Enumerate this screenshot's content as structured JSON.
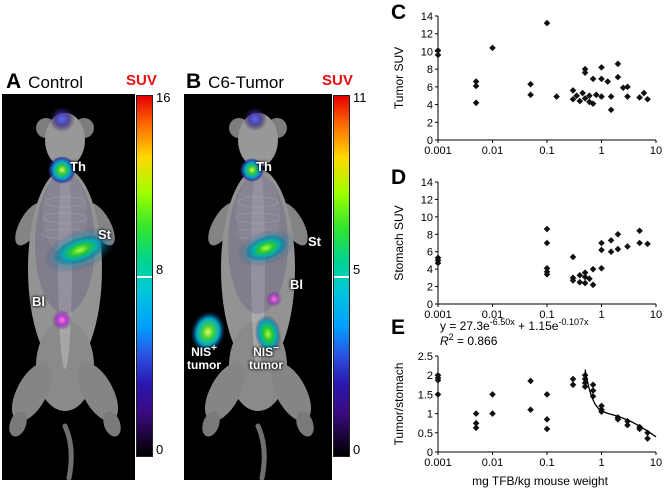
{
  "colors": {
    "suv_label": "#e81010",
    "marker": "#111111",
    "background": "#ffffff",
    "image_background": "#000000"
  },
  "panelA": {
    "letter": "A",
    "title": "Control",
    "suv": "SUV",
    "cbar_max": "16",
    "cbar_mid": "8",
    "cbar_min": "0",
    "labels": {
      "th": "Th",
      "st": "St",
      "bl": "Bl"
    }
  },
  "panelB": {
    "letter": "B",
    "title": "C6-Tumor",
    "suv": "SUV",
    "cbar_max": "11",
    "cbar_mid": "5",
    "cbar_min": "0",
    "labels": {
      "th": "Th",
      "st": "St",
      "bl": "Bl",
      "nis": "NIS",
      "pos": "+",
      "neg": "−",
      "tumor": "tumor"
    }
  },
  "panelC": {
    "letter": "C"
  },
  "panelD": {
    "letter": "D"
  },
  "panelE": {
    "letter": "E",
    "equation": {
      "p1": "y = 27.3e",
      "s1": "-6.50x",
      "p2": " + 1.15e",
      "s2": "-0.107x"
    },
    "r2": {
      "sym": "R",
      "sup": "2",
      "val": " = 0.866"
    }
  },
  "chart_data": [
    {
      "id": "C",
      "type": "scatter",
      "ylabel": "Tumor SUV",
      "xscale": "log",
      "xlim": [
        0.001,
        10
      ],
      "ylim": [
        0,
        14
      ],
      "xticks": [
        0.001,
        0.01,
        0.1,
        1,
        10
      ],
      "xtick_labels": [
        "0.001",
        "0.01",
        "0.1",
        "1",
        "10"
      ],
      "yticks": [
        0,
        2,
        4,
        6,
        8,
        10,
        12,
        14
      ],
      "ytick_labels": [
        "0",
        "2",
        "4",
        "6",
        "8",
        "10",
        "12",
        "14"
      ],
      "points": [
        [
          0.001,
          10.1
        ],
        [
          0.001,
          9.6
        ],
        [
          0.005,
          6.6
        ],
        [
          0.005,
          6.1
        ],
        [
          0.005,
          4.2
        ],
        [
          0.01,
          10.4
        ],
        [
          0.05,
          6.3
        ],
        [
          0.05,
          5.1
        ],
        [
          0.1,
          13.2
        ],
        [
          0.15,
          4.9
        ],
        [
          0.3,
          5.6
        ],
        [
          0.3,
          4.6
        ],
        [
          0.35,
          5.0
        ],
        [
          0.4,
          4.4
        ],
        [
          0.45,
          5.3
        ],
        [
          0.5,
          8.0
        ],
        [
          0.5,
          7.6
        ],
        [
          0.5,
          4.7
        ],
        [
          0.6,
          5.0
        ],
        [
          0.6,
          4.3
        ],
        [
          0.7,
          6.9
        ],
        [
          0.7,
          4.1
        ],
        [
          0.8,
          5.1
        ],
        [
          1.0,
          8.2
        ],
        [
          1.0,
          6.9
        ],
        [
          1.0,
          4.9
        ],
        [
          1.3,
          6.6
        ],
        [
          1.5,
          4.9
        ],
        [
          1.5,
          3.4
        ],
        [
          2.0,
          8.6
        ],
        [
          2.0,
          7.1
        ],
        [
          2.5,
          5.9
        ],
        [
          3.0,
          6.0
        ],
        [
          3.0,
          4.9
        ],
        [
          5.0,
          4.8
        ],
        [
          6.0,
          5.3
        ],
        [
          7.0,
          4.6
        ]
      ]
    },
    {
      "id": "D",
      "type": "scatter",
      "ylabel": "Stomach SUV",
      "xscale": "log",
      "xlim": [
        0.001,
        10
      ],
      "ylim": [
        0,
        14
      ],
      "xticks": [
        0.001,
        0.01,
        0.1,
        1,
        10
      ],
      "xtick_labels": [
        "0.001",
        "0.01",
        "0.1",
        "1",
        "10"
      ],
      "yticks": [
        0,
        2,
        4,
        6,
        8,
        10,
        12,
        14
      ],
      "ytick_labels": [
        "0",
        "2",
        "4",
        "6",
        "8",
        "10",
        "12",
        "14"
      ],
      "points": [
        [
          0.001,
          5.3
        ],
        [
          0.001,
          5.0
        ],
        [
          0.001,
          4.7
        ],
        [
          0.1,
          8.6
        ],
        [
          0.1,
          7.0
        ],
        [
          0.1,
          4.1
        ],
        [
          0.1,
          3.7
        ],
        [
          0.1,
          3.4
        ],
        [
          0.3,
          5.4
        ],
        [
          0.3,
          3.0
        ],
        [
          0.3,
          2.7
        ],
        [
          0.4,
          3.3
        ],
        [
          0.4,
          2.5
        ],
        [
          0.5,
          3.6
        ],
        [
          0.5,
          3.1
        ],
        [
          0.5,
          2.4
        ],
        [
          0.6,
          2.9
        ],
        [
          0.7,
          4.0
        ],
        [
          0.7,
          2.2
        ],
        [
          1.0,
          7.0
        ],
        [
          1.0,
          6.2
        ],
        [
          1.0,
          4.1
        ],
        [
          1.5,
          7.3
        ],
        [
          1.5,
          6.0
        ],
        [
          2.0,
          8.0
        ],
        [
          2.0,
          6.3
        ],
        [
          3.0,
          6.6
        ],
        [
          5.0,
          8.4
        ],
        [
          5.0,
          7.0
        ],
        [
          7.0,
          6.9
        ]
      ]
    },
    {
      "id": "E",
      "type": "scatter",
      "ylabel": "Tumor/stomach",
      "xlabel": "mg TFB/kg mouse weight",
      "xscale": "log",
      "xlim": [
        0.001,
        10
      ],
      "ylim": [
        0,
        2.5
      ],
      "xticks": [
        0.001,
        0.01,
        0.1,
        1,
        10
      ],
      "xtick_labels": [
        "0.001",
        "0.01",
        "0.1",
        "1",
        "10"
      ],
      "yticks": [
        0,
        0.5,
        1,
        1.5,
        2,
        2.5
      ],
      "ytick_labels": [
        "0",
        "0.5",
        "1",
        "1.5",
        "2",
        "2.5"
      ],
      "fit": {
        "a1": 27.3,
        "b1": -6.5,
        "a2": 1.15,
        "b2": -0.107,
        "x_start": 0.5,
        "x_end": 10
      },
      "fit_equation": "y = 27.3e^(-6.50x) + 1.15e^(-0.107x)",
      "r_squared": 0.866,
      "points": [
        [
          0.001,
          2.0
        ],
        [
          0.001,
          1.93
        ],
        [
          0.001,
          1.87
        ],
        [
          0.001,
          1.5
        ],
        [
          0.005,
          1.0
        ],
        [
          0.005,
          0.75
        ],
        [
          0.005,
          0.63
        ],
        [
          0.01,
          1.5
        ],
        [
          0.01,
          1.0
        ],
        [
          0.05,
          1.85
        ],
        [
          0.05,
          1.1
        ],
        [
          0.1,
          1.5
        ],
        [
          0.1,
          0.85
        ],
        [
          0.1,
          0.6
        ],
        [
          0.3,
          1.9
        ],
        [
          0.3,
          1.75
        ],
        [
          0.5,
          2.0
        ],
        [
          0.5,
          1.9
        ],
        [
          0.5,
          1.8
        ],
        [
          0.5,
          1.7
        ],
        [
          0.7,
          1.75
        ],
        [
          0.7,
          1.6
        ],
        [
          0.7,
          1.45
        ],
        [
          1.0,
          1.2
        ],
        [
          1.0,
          1.1
        ],
        [
          1.0,
          1.05
        ],
        [
          2.0,
          0.9
        ],
        [
          2.0,
          0.85
        ],
        [
          3.0,
          0.8
        ],
        [
          3.0,
          0.7
        ],
        [
          5.0,
          0.65
        ],
        [
          5.0,
          0.6
        ],
        [
          7.0,
          0.5
        ],
        [
          7.0,
          0.35
        ]
      ]
    }
  ]
}
